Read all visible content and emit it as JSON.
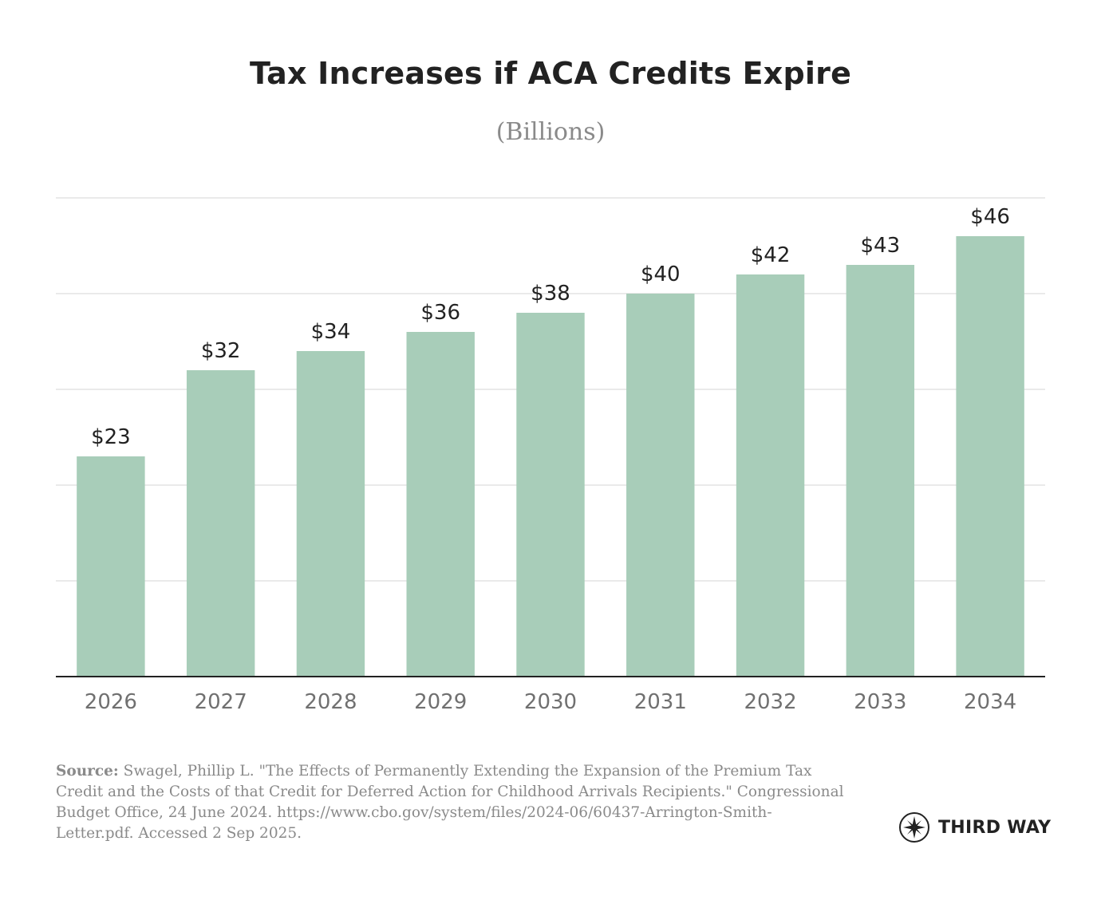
{
  "chart_data": {
    "type": "bar",
    "title": "Tax Increases if ACA Credits Expire",
    "subtitle": "(Billions)",
    "categories": [
      "2026",
      "2027",
      "2028",
      "2029",
      "2030",
      "2031",
      "2032",
      "2033",
      "2034"
    ],
    "values": [
      23,
      32,
      34,
      36,
      38,
      40,
      42,
      43,
      46
    ],
    "data_labels": [
      "$23",
      "$32",
      "$34",
      "$36",
      "$38",
      "$40",
      "$42",
      "$43",
      "$46"
    ],
    "ylim": [
      0,
      50
    ],
    "grid": true,
    "bar_color": "#a8cdb9",
    "axis_color": "#222222",
    "grid_color": "#e4e4e4",
    "tick_label_color": "#707070"
  },
  "source": {
    "label": "Source:",
    "text": " Swagel, Phillip L. \"The Effects of Permanently Extending the Expansion of the Premium Tax Credit and the Costs of that Credit for Deferred Action for Childhood Arrivals Recipients.\" Congressional Budget Office, 24 June 2024. https://www.cbo.gov/system/files/2024-06/60437-Arrington-Smith-Letter.pdf. Accessed 2 Sep 2025."
  },
  "logo": {
    "icon": "compass-icon",
    "text": "THIRD WAY"
  }
}
